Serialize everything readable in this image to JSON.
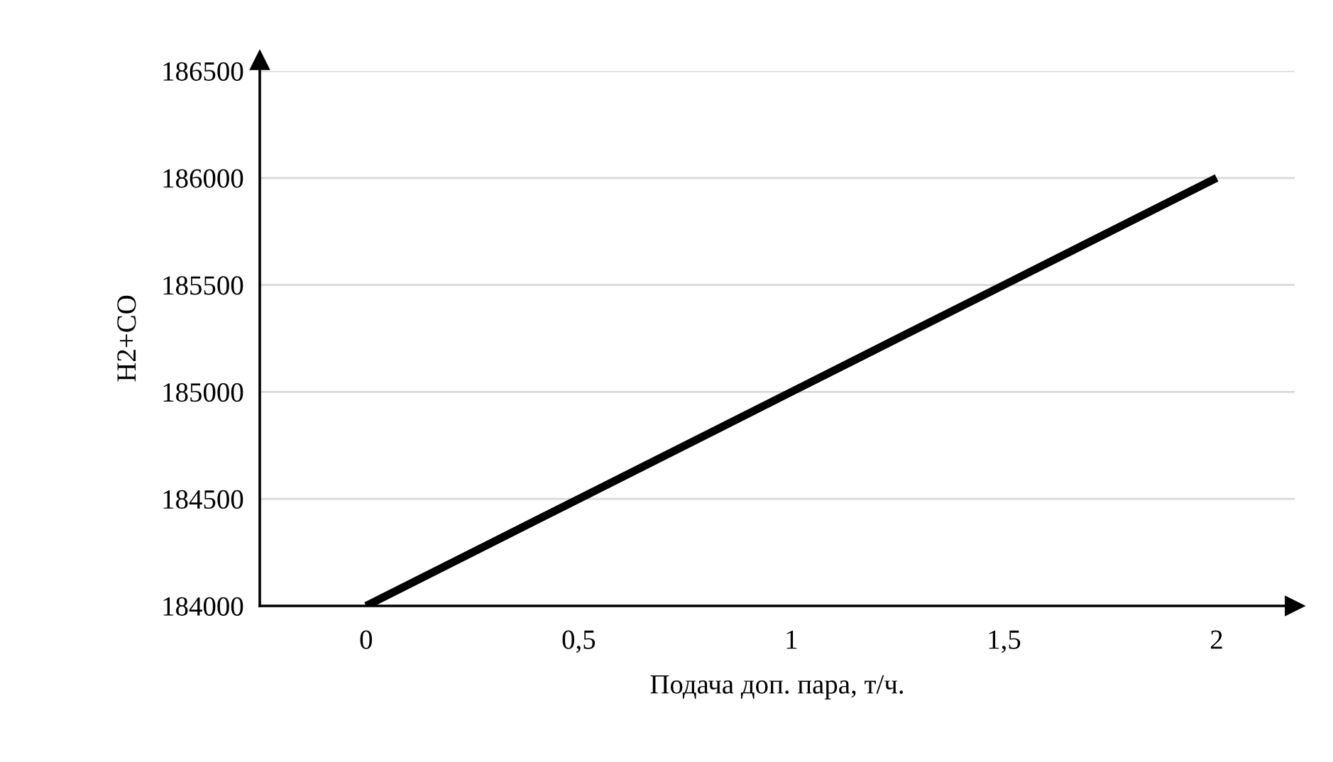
{
  "chart_data": {
    "type": "line",
    "xlabel": "Подача доп. пара, т/ч.",
    "ylabel": "H2+CO",
    "categories": [
      "0",
      "0,5",
      "1",
      "1,5",
      "2"
    ],
    "series": [
      {
        "color": "#000000",
        "values": [
          184000,
          184500,
          185000,
          185500,
          186000
        ]
      }
    ],
    "ylim": [
      184000,
      186500
    ],
    "yticks": [
      184000,
      184500,
      185000,
      185500,
      186000,
      186500
    ],
    "grid": "y",
    "marker": "none",
    "line_style": "solid"
  }
}
